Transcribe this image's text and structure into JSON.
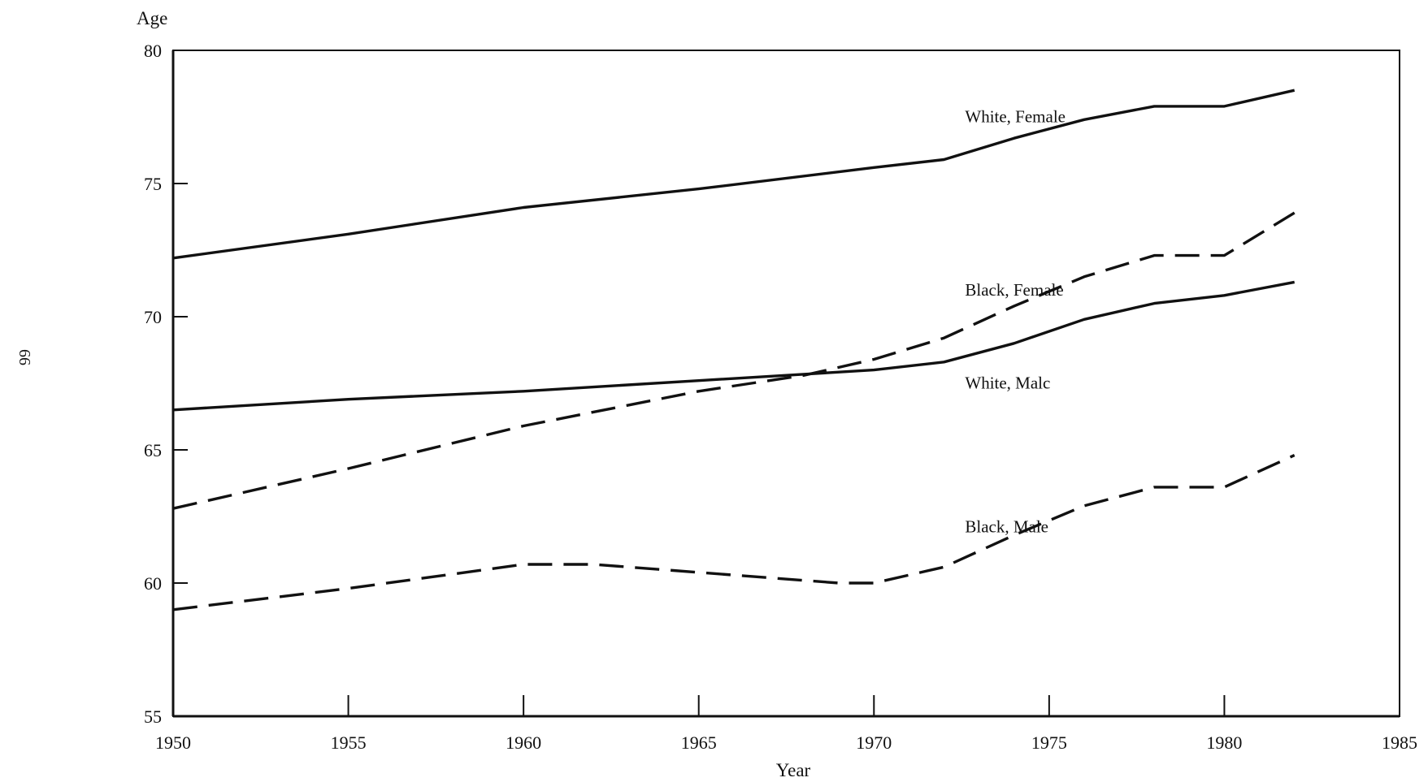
{
  "page_number": "66",
  "chart_data": {
    "type": "line",
    "title": "",
    "xlabel": "Year",
    "ylabel": "Age",
    "xlim": [
      1950,
      1985
    ],
    "ylim": [
      55,
      80
    ],
    "x_ticks": [
      1950,
      1955,
      1960,
      1965,
      1970,
      1975,
      1980,
      1985
    ],
    "y_ticks": [
      55,
      60,
      65,
      70,
      75,
      80
    ],
    "grid": false,
    "legend": "inline",
    "series": [
      {
        "name": "White, Female",
        "style": "solid",
        "x": [
          1950,
          1955,
          1960,
          1965,
          1970,
          1972,
          1974,
          1976,
          1978,
          1980,
          1982
        ],
        "y": [
          72.2,
          73.1,
          74.1,
          74.8,
          75.6,
          75.9,
          76.7,
          77.4,
          77.9,
          77.9,
          78.5
        ]
      },
      {
        "name": "Black, Female",
        "style": "dashed",
        "x": [
          1950,
          1955,
          1960,
          1965,
          1968,
          1970,
          1972,
          1974,
          1976,
          1978,
          1980,
          1982
        ],
        "y": [
          62.8,
          64.3,
          65.9,
          67.2,
          67.8,
          68.4,
          69.2,
          70.4,
          71.5,
          72.3,
          72.3,
          73.9
        ]
      },
      {
        "name": "White, Male",
        "style": "solid",
        "x": [
          1950,
          1955,
          1960,
          1965,
          1970,
          1972,
          1974,
          1976,
          1978,
          1980,
          1982
        ],
        "y": [
          66.5,
          66.9,
          67.2,
          67.6,
          68.0,
          68.3,
          69.0,
          69.9,
          70.5,
          70.8,
          71.3
        ]
      },
      {
        "name": "Black, Male",
        "style": "dashed",
        "x": [
          1950,
          1955,
          1960,
          1962,
          1965,
          1969,
          1970,
          1972,
          1974,
          1976,
          1978,
          1980,
          1982
        ],
        "y": [
          59.0,
          59.8,
          60.7,
          60.7,
          60.4,
          60.0,
          60.0,
          60.6,
          61.8,
          62.9,
          63.6,
          63.6,
          64.8
        ]
      }
    ],
    "annotations": [
      {
        "text": "White, Female",
        "x": 1972.6,
        "y": 77.3
      },
      {
        "text": "Black, Female",
        "x": 1972.6,
        "y": 70.8
      },
      {
        "text": "White, Malc",
        "x": 1972.6,
        "y": 67.3
      },
      {
        "text": "Black, Male",
        "x": 1972.6,
        "y": 61.9
      }
    ]
  }
}
